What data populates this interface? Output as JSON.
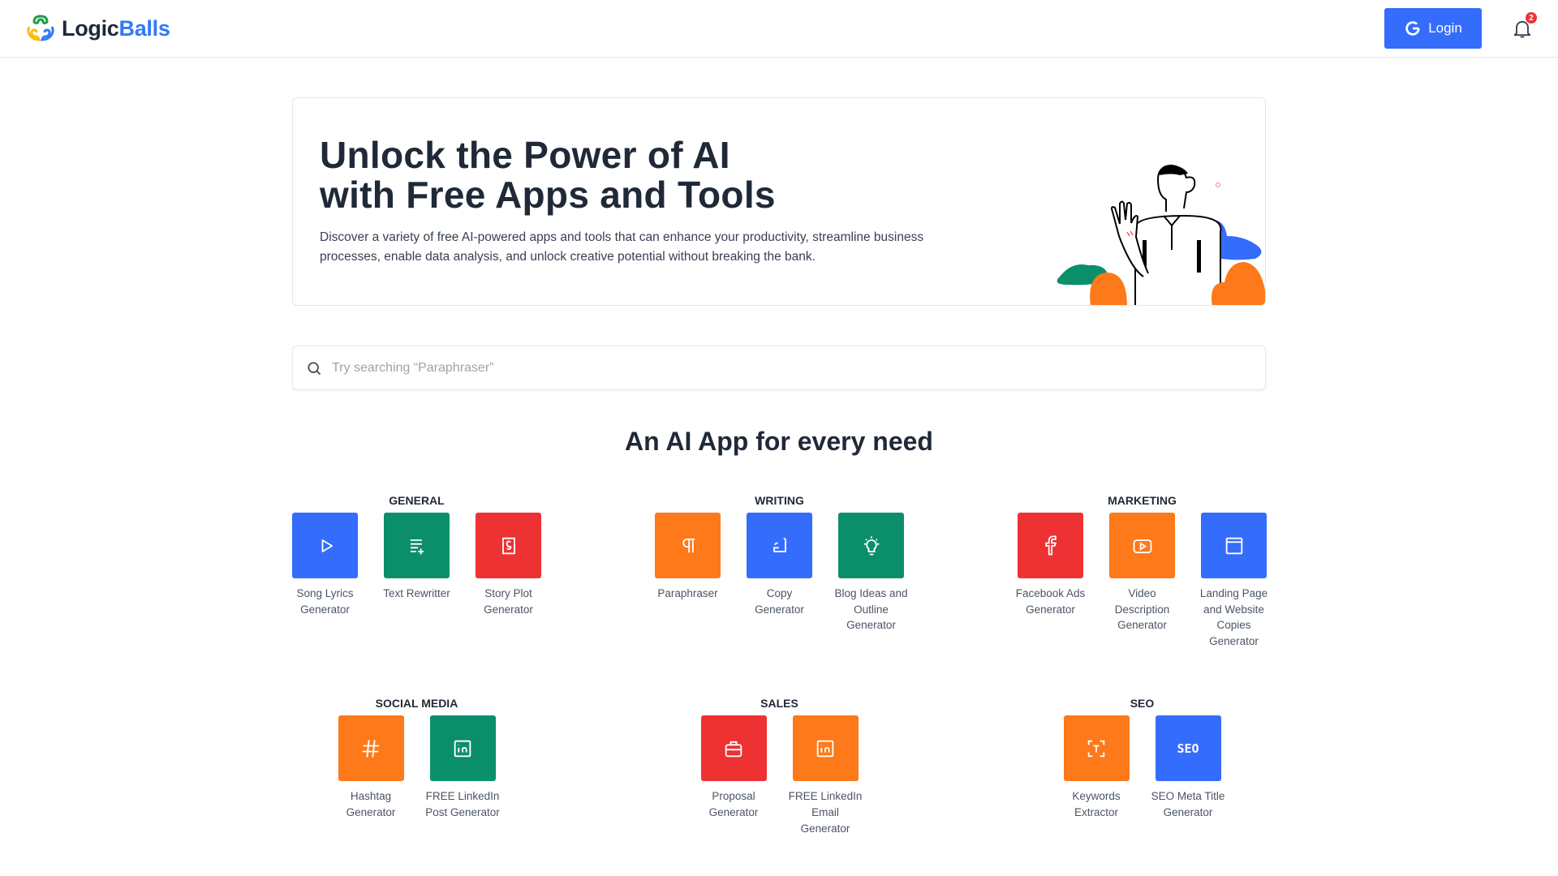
{
  "header": {
    "brand_part1": "Logic",
    "brand_part2": "Balls",
    "login_label": "Login",
    "notification_count": "2"
  },
  "hero": {
    "title_line1": "Unlock the Power of AI",
    "title_line2": "with Free Apps and Tools",
    "description": "Discover a variety of free AI-powered apps and tools that can enhance your productivity, streamline business processes, enable data analysis, and unlock creative potential without breaking the bank."
  },
  "search": {
    "placeholder": "Try searching “Paraphraser”",
    "value": ""
  },
  "section_title": "An AI App for every need",
  "colors": {
    "blue": "#346cfb",
    "green": "#0b8f6a",
    "red": "#ee3133",
    "orange": "#fd7919"
  },
  "groups": [
    {
      "title": "GENERAL",
      "apps": [
        {
          "label": "Song Lyrics Generator",
          "color": "#346cfb",
          "icon": "play-icon"
        },
        {
          "label": "Text Rewritter",
          "color": "#0b8f6a",
          "icon": "list-plus-icon"
        },
        {
          "label": "Story Plot Generator",
          "color": "#ee3133",
          "icon": "story-book-icon"
        }
      ]
    },
    {
      "title": "WRITING",
      "apps": [
        {
          "label": "Paraphraser",
          "color": "#fd7919",
          "icon": "pilcrow-icon"
        },
        {
          "label": "Copy Generator",
          "color": "#346cfb",
          "icon": "signature-pen-icon"
        },
        {
          "label": "Blog Ideas and Outline Generator",
          "color": "#0b8f6a",
          "icon": "bulb-icon"
        }
      ]
    },
    {
      "title": "MARKETING",
      "apps": [
        {
          "label": "Facebook Ads Generator",
          "color": "#ee3133",
          "icon": "facebook-icon"
        },
        {
          "label": "Video Description Generator",
          "color": "#fd7919",
          "icon": "youtube-icon"
        },
        {
          "label": "Landing Page and Website Copies Generator",
          "color": "#346cfb",
          "icon": "browser-window-icon"
        }
      ]
    },
    {
      "title": "SOCIAL MEDIA",
      "apps": [
        {
          "label": "Hashtag Generator",
          "color": "#fd7919",
          "icon": "hashtag-icon"
        },
        {
          "label": "FREE LinkedIn Post Generator",
          "color": "#0b8f6a",
          "icon": "linkedin-icon"
        }
      ]
    },
    {
      "title": "SALES",
      "apps": [
        {
          "label": "Proposal Generator",
          "color": "#ee3133",
          "icon": "briefcase-icon"
        },
        {
          "label": "FREE LinkedIn Email Generator",
          "color": "#fd7919",
          "icon": "linkedin-icon"
        }
      ]
    },
    {
      "title": "SEO",
      "apps": [
        {
          "label": "Keywords Extractor",
          "color": "#fd7919",
          "icon": "text-scan-icon"
        },
        {
          "label": "SEO Meta Title Generator",
          "color": "#346cfb",
          "icon": "seo-icon",
          "icon_text": "SEO"
        }
      ]
    }
  ]
}
